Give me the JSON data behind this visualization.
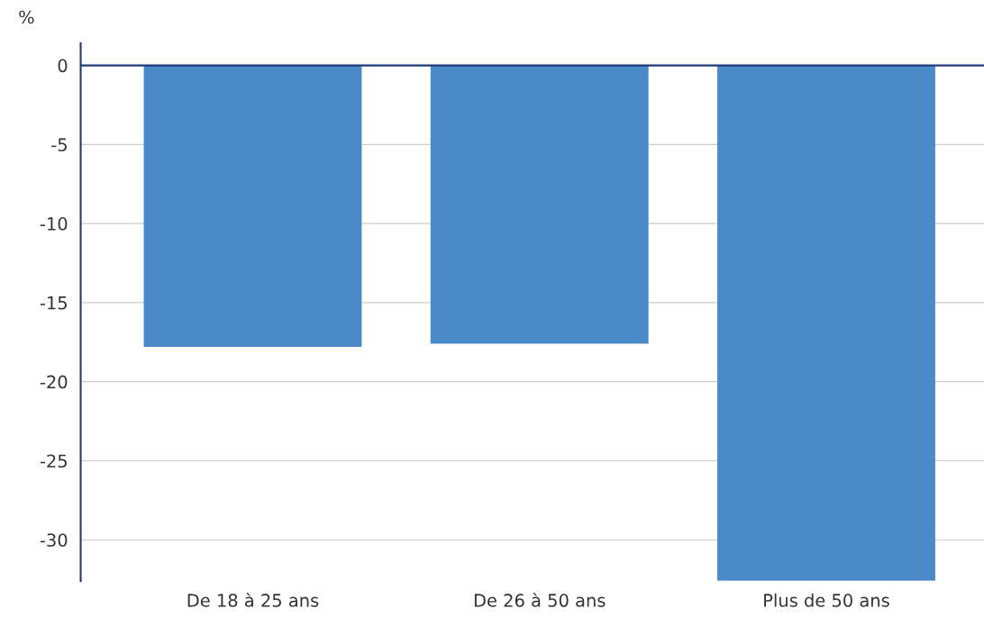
{
  "chart_data": {
    "type": "bar",
    "ylabel": "%",
    "categories": [
      "De 18 à 25 ans",
      "De 26 à 50 ans",
      "Plus de 50 ans"
    ],
    "values": [
      -17.8,
      -17.6,
      -32.6
    ],
    "color": "#4a8ac9",
    "ylim": [
      -32.6,
      1.4
    ],
    "yticks": [
      0,
      -5,
      -10,
      -15,
      -20,
      -25,
      -30
    ],
    "grid": "y",
    "ref_lines": [
      {
        "axis": "y",
        "value": 0,
        "color": "#1f3a7a"
      }
    ]
  }
}
